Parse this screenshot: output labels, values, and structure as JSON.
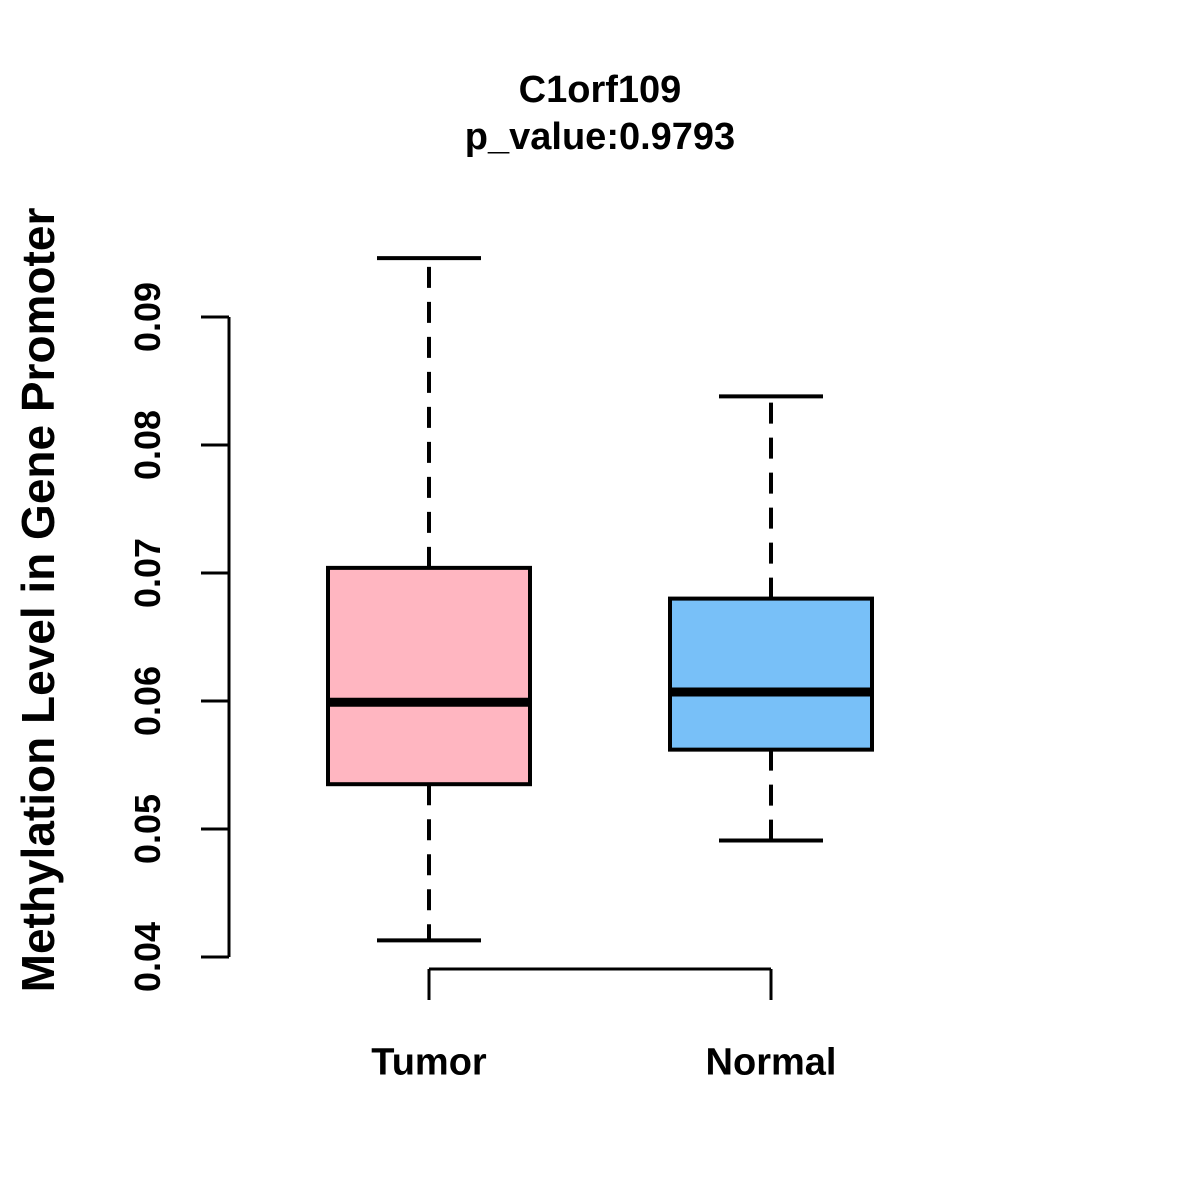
{
  "figure": {
    "background": "#FFFFFF",
    "text_color": "#000000"
  },
  "chart_data": {
    "type": "boxplot",
    "title": "C1orf109",
    "subtitle": "p_value:0.9793",
    "p_value": 0.9793,
    "ylabel": "Methylation Level in Gene Promoter",
    "xlabel": "",
    "categories": [
      "Tumor",
      "Normal"
    ],
    "y_ticks": [
      0.04,
      0.05,
      0.06,
      0.07,
      0.08,
      0.09
    ],
    "y_tick_labels": [
      "0.04",
      "0.05",
      "0.06",
      "0.07",
      "0.08",
      "0.09"
    ],
    "ylim": [
      0.039,
      0.097
    ],
    "grid": false,
    "legend": "none",
    "whisker_style": "dashed",
    "series": [
      {
        "name": "Tumor",
        "box_color": "#FFB6C1",
        "border_color": "#000000",
        "lower_whisker": 0.0413,
        "q1": 0.0535,
        "median": 0.0599,
        "q3": 0.0704,
        "upper_whisker": 0.0946
      },
      {
        "name": "Normal",
        "box_color": "#78C0F8",
        "border_color": "#000000",
        "lower_whisker": 0.0491,
        "q1": 0.0562,
        "median": 0.0607,
        "q3": 0.068,
        "upper_whisker": 0.0838
      }
    ]
  }
}
